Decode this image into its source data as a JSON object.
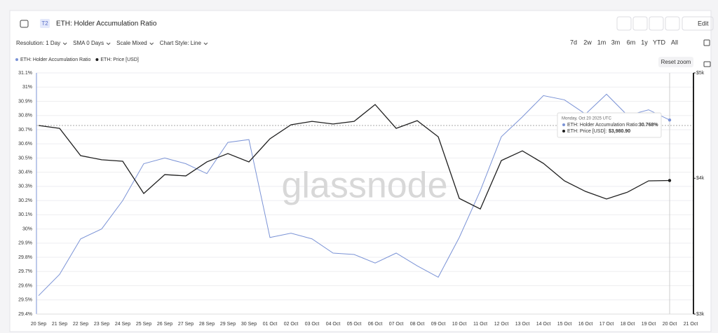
{
  "header": {
    "badge": "T2",
    "title": "ETH: Holder Accumulation Ratio",
    "edit": "Edit"
  },
  "toolbar": {
    "options": [
      "Resolution: 1 Day",
      "SMA 0 Days",
      "Scale Mixed",
      "Chart Style: Line"
    ],
    "ranges": [
      "7d",
      "2w",
      "1m",
      "3m",
      "6m",
      "1y",
      "YTD",
      "All"
    ],
    "reset": "Reset zoom"
  },
  "watermark": "glassnode",
  "tooltip": {
    "title": "Monday, Oct 20 2025 UTC",
    "rows": [
      {
        "label": "ETH: Holder Accumulation Ratio:",
        "value": "30.768%"
      },
      {
        "label": "ETH: Price [USD]:",
        "value": "$3,980.90"
      }
    ]
  },
  "chart_data": {
    "type": "line",
    "categories": [
      "20 Sep",
      "21 Sep",
      "22 Sep",
      "23 Sep",
      "24 Sep",
      "25 Sep",
      "26 Sep",
      "27 Sep",
      "28 Sep",
      "29 Sep",
      "30 Sep",
      "01 Oct",
      "02 Oct",
      "03 Oct",
      "04 Oct",
      "05 Oct",
      "06 Oct",
      "07 Oct",
      "08 Oct",
      "09 Oct",
      "10 Oct",
      "11 Oct",
      "12 Oct",
      "13 Oct",
      "14 Oct",
      "15 Oct",
      "16 Oct",
      "17 Oct",
      "18 Oct",
      "19 Oct",
      "20 Oct",
      "21 Oct"
    ],
    "series": [
      {
        "name": "ETH: Holder Accumulation Ratio",
        "color": "#7b93d6",
        "axis": "y",
        "values": [
          29.53,
          29.68,
          29.93,
          30.0,
          30.2,
          30.46,
          30.5,
          30.46,
          30.39,
          30.61,
          30.63,
          29.94,
          29.97,
          29.93,
          29.83,
          29.82,
          29.76,
          29.83,
          29.74,
          29.66,
          29.94,
          30.27,
          30.65,
          30.79,
          30.94,
          30.91,
          30.81,
          30.95,
          30.8,
          30.84,
          30.768,
          null
        ]
      },
      {
        "name": "ETH: Price [USD]",
        "color": "#1f1f1f",
        "axis": "y2",
        "values": [
          4473,
          4446,
          4196,
          4160,
          4147,
          3873,
          4031,
          4020,
          4141,
          4215,
          4141,
          4349,
          4480,
          4512,
          4487,
          4512,
          4676,
          4446,
          4519,
          4367,
          3833,
          3748,
          4153,
          4239,
          4128,
          3978,
          3890,
          3828,
          3884,
          3978,
          3980.9,
          null
        ]
      }
    ],
    "ylim": [
      29.4,
      31.1
    ],
    "yticks": [
      {
        "value": 31.1,
        "label": "31.1%"
      },
      {
        "value": 31.0,
        "label": "31%"
      },
      {
        "value": 30.9,
        "label": "30.9%"
      },
      {
        "value": 30.8,
        "label": "30.8%"
      },
      {
        "value": 30.7,
        "label": "30.7%"
      },
      {
        "value": 30.6,
        "label": "30.6%"
      },
      {
        "value": 30.5,
        "label": "30.5%"
      },
      {
        "value": 30.4,
        "label": "30.4%"
      },
      {
        "value": 30.3,
        "label": "30.3%"
      },
      {
        "value": 30.2,
        "label": "30.2%"
      },
      {
        "value": 30.1,
        "label": "30.1%"
      },
      {
        "value": 30.0,
        "label": "30%"
      },
      {
        "value": 29.9,
        "label": "29.9%"
      },
      {
        "value": 29.8,
        "label": "29.8%"
      },
      {
        "value": 29.7,
        "label": "29.7%"
      },
      {
        "value": 29.6,
        "label": "29.6%"
      },
      {
        "value": 29.5,
        "label": "29.5%"
      },
      {
        "value": 29.4,
        "label": "29.4%"
      }
    ],
    "y2lim": [
      3000,
      5000
    ],
    "y2log": true,
    "y2ticks": [
      {
        "value": 5000,
        "label": "$5k"
      },
      {
        "value": 4000,
        "label": "$4k"
      },
      {
        "value": 3000,
        "label": "$3k"
      }
    ],
    "grid": true,
    "legend": "top-left"
  }
}
